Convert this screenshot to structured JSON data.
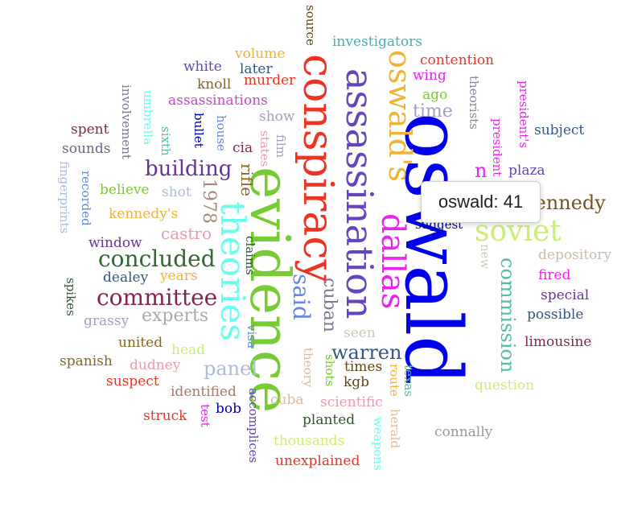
{
  "tooltip": {
    "text": "oswald: 41"
  },
  "words": [
    {
      "text": "oswald",
      "color": "#0000ee"
    },
    {
      "text": "evidence",
      "color": "#77cc33"
    },
    {
      "text": "conspiracy",
      "color": "#ee3322"
    },
    {
      "text": "assassination",
      "color": "#6644bb"
    },
    {
      "text": "oswald's",
      "color": "#f2b233"
    },
    {
      "text": "dallas",
      "color": "#ee22ee"
    },
    {
      "text": "theories",
      "color": "#66ffee"
    },
    {
      "text": "soviet",
      "color": "#ccee77"
    },
    {
      "text": "kennedy",
      "color": "#775522"
    },
    {
      "text": "building",
      "color": "#663399"
    },
    {
      "text": "concluded",
      "color": "#336633"
    },
    {
      "text": "committee",
      "color": "#882255"
    },
    {
      "text": "warren",
      "color": "#335588"
    },
    {
      "text": "commission",
      "color": "#55bbaa"
    },
    {
      "text": "said",
      "color": "#6688dd"
    },
    {
      "text": "experts",
      "color": "#aaaaaa"
    },
    {
      "text": "panel",
      "color": "#aabbdd"
    },
    {
      "text": "castro",
      "color": "#ee99aa"
    },
    {
      "text": "time",
      "color": "#aa99cc"
    },
    {
      "text": "investigators",
      "color": "#55aaaa"
    },
    {
      "text": "contention",
      "color": "#ee3322"
    },
    {
      "text": "volume",
      "color": "#f2b233"
    },
    {
      "text": "later",
      "color": "#335588"
    },
    {
      "text": "murder",
      "color": "#ee3322"
    },
    {
      "text": "white",
      "color": "#6644bb"
    },
    {
      "text": "knoll",
      "color": "#886622"
    },
    {
      "text": "assassinations",
      "color": "#cc44cc"
    },
    {
      "text": "show",
      "color": "#aa99cc"
    },
    {
      "text": "source",
      "color": "#664411"
    },
    {
      "text": "wing",
      "color": "#ee22ee"
    },
    {
      "text": "ago",
      "color": "#77cc33"
    },
    {
      "text": "theorists",
      "color": "#888899"
    },
    {
      "text": "president's",
      "color": "#ee22ee"
    },
    {
      "text": "president",
      "color": "#ee22ee"
    },
    {
      "text": "subject",
      "color": "#335588"
    },
    {
      "text": "plaza",
      "color": "#6644bb"
    },
    {
      "text": "involvement",
      "color": "#777799"
    },
    {
      "text": "umbrella",
      "color": "#66ffee"
    },
    {
      "text": "spent",
      "color": "#882255"
    },
    {
      "text": "sounds",
      "color": "#666688"
    },
    {
      "text": "sixth",
      "color": "#55bbaa"
    },
    {
      "text": "bullet",
      "color": "#0000aa"
    },
    {
      "text": "house",
      "color": "#6688dd"
    },
    {
      "text": "cia",
      "color": "#882255"
    },
    {
      "text": "states",
      "color": "#ee99aa"
    },
    {
      "text": "film",
      "color": "#aa99cc"
    },
    {
      "text": "fingerprints",
      "color": "#aabbdd"
    },
    {
      "text": "recorded",
      "color": "#6688dd"
    },
    {
      "text": "believe",
      "color": "#77cc33"
    },
    {
      "text": "shot",
      "color": "#aabbdd"
    },
    {
      "text": "1978",
      "color": "#aa8877"
    },
    {
      "text": "rifle",
      "color": "#886622"
    },
    {
      "text": "kennedy's",
      "color": "#f2b233"
    },
    {
      "text": "window",
      "color": "#663399"
    },
    {
      "text": "claims",
      "color": "#335533"
    },
    {
      "text": "dealey",
      "color": "#335588"
    },
    {
      "text": "years",
      "color": "#f2b233"
    },
    {
      "text": "spikes",
      "color": "#335533"
    },
    {
      "text": "grassy",
      "color": "#aa99cc"
    },
    {
      "text": "united",
      "color": "#886622"
    },
    {
      "text": "head",
      "color": "#ccee77"
    },
    {
      "text": "spanish",
      "color": "#886622"
    },
    {
      "text": "dudney",
      "color": "#ee99aa"
    },
    {
      "text": "suspect",
      "color": "#ee3322"
    },
    {
      "text": "identified",
      "color": "#aa7766"
    },
    {
      "text": "struck",
      "color": "#ee3322"
    },
    {
      "text": "test",
      "color": "#ee22ee"
    },
    {
      "text": "bob",
      "color": "#0000aa"
    },
    {
      "text": "accomplices",
      "color": "#6644bb"
    },
    {
      "text": "visa",
      "color": "#6688dd"
    },
    {
      "text": "cuban",
      "color": "#777799"
    },
    {
      "text": "seen",
      "color": "#ccccbb"
    },
    {
      "text": "theory",
      "color": "#ddbb99"
    },
    {
      "text": "shots",
      "color": "#77cc33"
    },
    {
      "text": "times",
      "color": "#664411"
    },
    {
      "text": "kgb",
      "color": "#664411"
    },
    {
      "text": "route",
      "color": "#f2b233"
    },
    {
      "text": "herald",
      "color": "#ddbb99"
    },
    {
      "text": "texas",
      "color": "#55bbaa"
    },
    {
      "text": "cuba",
      "color": "#ddbb99"
    },
    {
      "text": "scientific",
      "color": "#ee99aa"
    },
    {
      "text": "planted",
      "color": "#335533"
    },
    {
      "text": "thousands",
      "color": "#ccee77"
    },
    {
      "text": "unexplained",
      "color": "#ee3322"
    },
    {
      "text": "weapons",
      "color": "#66ffee"
    },
    {
      "text": "connally",
      "color": "#999999"
    },
    {
      "text": "question",
      "color": "#ccee77"
    },
    {
      "text": "limousine",
      "color": "#882255"
    },
    {
      "text": "possible",
      "color": "#335588"
    },
    {
      "text": "special",
      "color": "#663399"
    },
    {
      "text": "fired",
      "color": "#ee22ee"
    },
    {
      "text": "depository",
      "color": "#ccbbaa"
    },
    {
      "text": "suggest",
      "color": "#0000aa"
    },
    {
      "text": "new",
      "color": "#ccccbb"
    },
    {
      "text": "n",
      "color": "#ee22ee"
    }
  ]
}
